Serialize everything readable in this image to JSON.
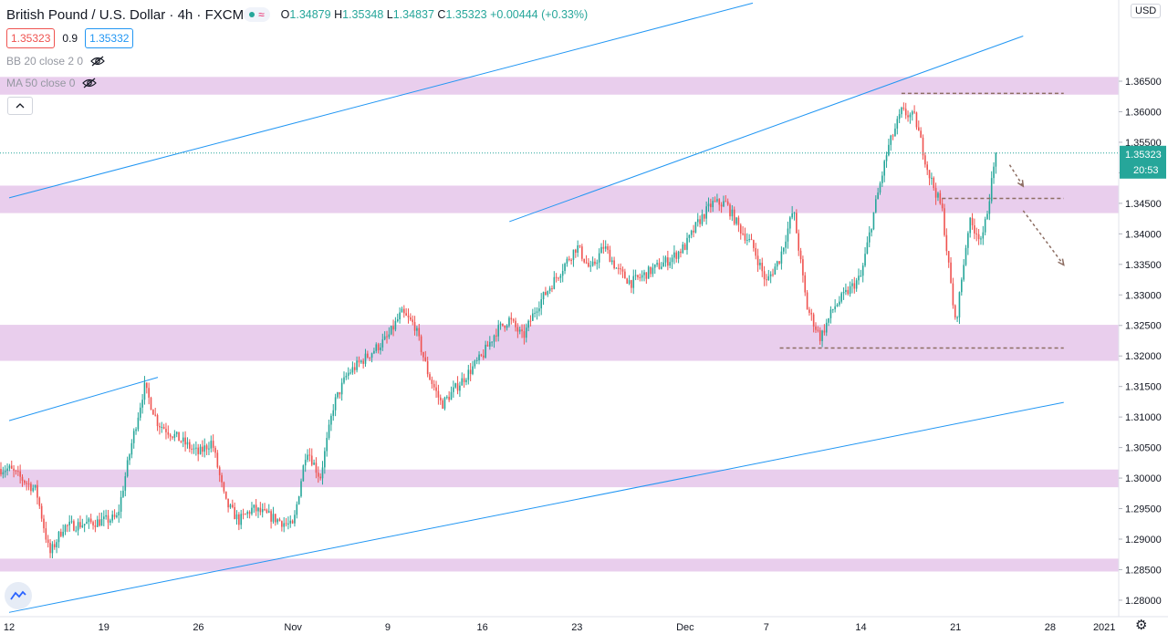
{
  "header": {
    "symbol_title": "British Pound / U.S. Dollar · 4h · FXCM",
    "open_label": "O",
    "open": "1.34879",
    "high_label": "H",
    "high": "1.35348",
    "low_label": "L",
    "low": "1.34837",
    "close_label": "C",
    "close": "1.35323",
    "change": "+0.00444 (+0.33%)"
  },
  "trade": {
    "sell_price": "1.35323",
    "spread": "0.9",
    "buy_price": "1.35332"
  },
  "indicators": [
    {
      "label": "BB 20 close 2 0",
      "hidden": true
    },
    {
      "label": "MA 50 close 0",
      "hidden": true
    }
  ],
  "currency_label": "USD",
  "icons": {
    "visibility": "eye-off-icon",
    "collapse": "chevron-up-icon",
    "logo": "tradingview-logo-icon",
    "settings": "gear-icon",
    "status": "market-open-dot-icon",
    "data_feed": "wave-icon"
  },
  "colors": {
    "up": "#26a69a",
    "down": "#ef5350",
    "zone": "#e1bee7",
    "trendline": "#2196f3",
    "level_line": "#8d6e63",
    "arrow": "#8d6e63",
    "price_tag": "#26a69a"
  },
  "price_tag": {
    "price": "1.35323",
    "countdown": "20:53"
  },
  "chart_data": {
    "type": "candlestick",
    "timeframe": "4h",
    "x_ticks": [
      "12",
      "19",
      "26",
      "Nov",
      "9",
      "16",
      "23",
      "Dec",
      "7",
      "14",
      "21",
      "28",
      "2021"
    ],
    "y_ticks": [
      "1.36500",
      "1.36000",
      "1.35500",
      "1.35000",
      "1.34500",
      "1.34000",
      "1.33500",
      "1.33000",
      "1.32500",
      "1.32000",
      "1.31500",
      "1.31000",
      "1.30500",
      "1.30000",
      "1.29500",
      "1.29000",
      "1.28500",
      "1.28000"
    ],
    "ylim": [
      1.2773,
      1.3783
    ],
    "x_range": [
      "2020-10-12",
      "2021-01-02"
    ],
    "last_price": 1.35323,
    "price_path": [
      [
        "2020-10-12",
        1.3015
      ],
      [
        "2020-10-14",
        1.298
      ],
      [
        "2020-10-15",
        1.2875
      ],
      [
        "2020-10-16",
        1.292
      ],
      [
        "2020-10-19",
        1.293
      ],
      [
        "2020-10-20",
        1.2935
      ],
      [
        "2020-10-21",
        1.305
      ],
      [
        "2020-10-22",
        1.315
      ],
      [
        "2020-10-23",
        1.309
      ],
      [
        "2020-10-26",
        1.304
      ],
      [
        "2020-10-27",
        1.306
      ],
      [
        "2020-10-28",
        1.296
      ],
      [
        "2020-10-29",
        1.293
      ],
      [
        "2020-10-30",
        1.295
      ],
      [
        "2020-11-02",
        1.292
      ],
      [
        "2020-11-03",
        1.305
      ],
      [
        "2020-11-04",
        1.3
      ],
      [
        "2020-11-05",
        1.312
      ],
      [
        "2020-11-06",
        1.317
      ],
      [
        "2020-11-09",
        1.323
      ],
      [
        "2020-11-10",
        1.327
      ],
      [
        "2020-11-11",
        1.325
      ],
      [
        "2020-11-12",
        1.317
      ],
      [
        "2020-11-13",
        1.312
      ],
      [
        "2020-11-16",
        1.32
      ],
      [
        "2020-11-17",
        1.324
      ],
      [
        "2020-11-18",
        1.326
      ],
      [
        "2020-11-19",
        1.323
      ],
      [
        "2020-11-20",
        1.328
      ],
      [
        "2020-11-23",
        1.338
      ],
      [
        "2020-11-24",
        1.334
      ],
      [
        "2020-11-25",
        1.338
      ],
      [
        "2020-11-26",
        1.334
      ],
      [
        "2020-11-27",
        1.332
      ],
      [
        "2020-11-30",
        1.336
      ],
      [
        "2020-12-01",
        1.338
      ],
      [
        "2020-12-02",
        1.342
      ],
      [
        "2020-12-03",
        1.345
      ],
      [
        "2020-12-04",
        1.345
      ],
      [
        "2020-12-05",
        1.341
      ],
      [
        "2020-12-06",
        1.338
      ],
      [
        "2020-12-07",
        1.332
      ],
      [
        "2020-12-08",
        1.336
      ],
      [
        "2020-12-09",
        1.344
      ],
      [
        "2020-12-10",
        1.328
      ],
      [
        "2020-12-11",
        1.323
      ],
      [
        "2020-12-12",
        1.328
      ],
      [
        "2020-12-14",
        1.333
      ],
      [
        "2020-12-15",
        1.344
      ],
      [
        "2020-12-16",
        1.354
      ],
      [
        "2020-12-17",
        1.36
      ],
      [
        "2020-12-18",
        1.359
      ],
      [
        "2020-12-19",
        1.35
      ],
      [
        "2020-12-20",
        1.344
      ],
      [
        "2020-12-21",
        1.325
      ],
      [
        "2020-12-22",
        1.342
      ],
      [
        "2020-12-23",
        1.339
      ],
      [
        "2020-12-24",
        1.35323
      ]
    ],
    "zones": [
      [
        1.3628,
        1.3657
      ],
      [
        1.3434,
        1.3479
      ],
      [
        1.3192,
        1.3251
      ],
      [
        1.2985,
        1.3014
      ],
      [
        1.2847,
        1.2868
      ]
    ],
    "trendlines": [
      {
        "from": [
          "2020-10-12",
          1.3459
        ],
        "to": [
          "2020-12-06",
          1.3778
        ]
      },
      {
        "from": [
          "2020-11-18",
          1.342
        ],
        "to": [
          "2020-12-26",
          1.3724
        ]
      },
      {
        "from": [
          "2020-10-12",
          1.3094
        ],
        "to": [
          "2020-10-23",
          1.3165
        ]
      },
      {
        "from": [
          "2020-10-12",
          1.278
        ],
        "to": [
          "2020-12-29",
          1.3124
        ]
      }
    ],
    "levels": [
      {
        "price": 1.363,
        "from": "2020-12-17",
        "to": "2020-12-29"
      },
      {
        "price": 1.3458,
        "from": "2020-12-20",
        "to": "2020-12-29"
      },
      {
        "price": 1.3213,
        "from": "2020-12-08",
        "to": "2020-12-29"
      }
    ],
    "arrows": [
      {
        "from": [
          "2020-12-25",
          1.3513
        ],
        "to": [
          "2020-12-26",
          1.3478
        ]
      },
      {
        "from": [
          "2020-12-26",
          1.3438
        ],
        "to": [
          "2020-12-29",
          1.3349
        ]
      }
    ]
  }
}
